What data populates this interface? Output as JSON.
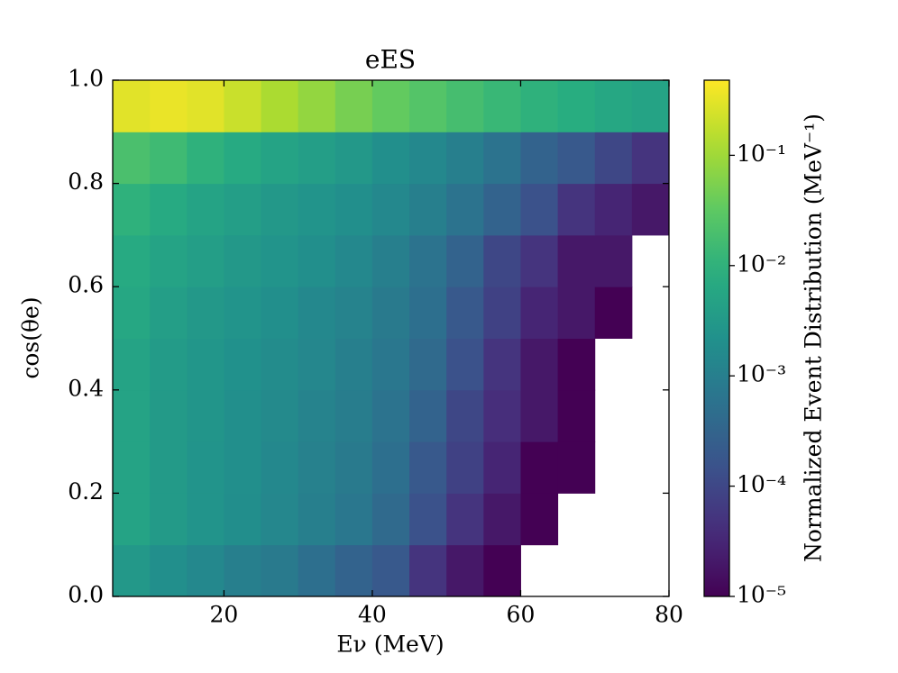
{
  "chart_data": {
    "type": "heatmap",
    "title": "eES",
    "xlabel": "Eν (MeV)",
    "ylabel": "cos(θe)",
    "colorbar_label": "Normalized Event Distribution (MeV⁻¹)",
    "colormap": "viridis",
    "color_scale": "log",
    "xlim": [
      5,
      80
    ],
    "ylim": [
      0,
      1
    ],
    "xticks": [
      20,
      40,
      60,
      80
    ],
    "yticks": [
      {
        "value": 0,
        "label": "0.0"
      },
      0.2,
      0.4,
      0.6,
      0.8,
      {
        "value": 1,
        "label": "1.0"
      }
    ],
    "clim": [
      1e-05,
      0.48
    ],
    "cticks": [
      {
        "value": 1e-05,
        "label": "10⁻⁵"
      },
      {
        "value": 0.0001,
        "label": "10⁻⁴"
      },
      {
        "value": 0.001,
        "label": "10⁻³"
      },
      {
        "value": 0.01,
        "label": "10⁻²"
      },
      {
        "value": 0.1,
        "label": "10⁻¹"
      }
    ],
    "xbins": [
      5,
      10,
      15,
      20,
      25,
      30,
      35,
      40,
      45,
      50,
      55,
      60,
      65,
      70,
      75,
      80
    ],
    "ybins": [
      0,
      0.1,
      0.2,
      0.3,
      0.4,
      0.5,
      0.6,
      0.7,
      0.8,
      0.9,
      1
    ],
    "z": [
      [
        0.003,
        0.002,
        0.0015,
        0.001,
        0.0008,
        0.0005,
        0.0003,
        0.0002,
        5e-05,
        2e-05,
        1e-05,
        null,
        null,
        null,
        null
      ],
      [
        0.005,
        0.0033,
        0.0025,
        0.0019,
        0.0014,
        0.001,
        0.0007,
        0.0004,
        0.00015,
        5e-05,
        2e-05,
        1e-05,
        null,
        null,
        null
      ],
      [
        0.005,
        0.0033,
        0.0025,
        0.002,
        0.0015,
        0.0011,
        0.0008,
        0.0005,
        0.0002,
        8e-05,
        3e-05,
        1e-05,
        1e-05,
        null,
        null
      ],
      [
        0.005,
        0.0033,
        0.0026,
        0.002,
        0.0016,
        0.0012,
        0.0009,
        0.0006,
        0.0003,
        0.0001,
        4e-05,
        2e-05,
        1e-05,
        null,
        null
      ],
      [
        0.005,
        0.0035,
        0.0028,
        0.0022,
        0.0018,
        0.0014,
        0.001,
        0.0007,
        0.0004,
        0.00015,
        5e-05,
        2e-05,
        1e-05,
        null,
        null
      ],
      [
        0.006,
        0.004,
        0.003,
        0.0025,
        0.002,
        0.0015,
        0.0012,
        0.0008,
        0.0005,
        0.0002,
        8e-05,
        3e-05,
        2e-05,
        1e-05,
        null
      ],
      [
        0.007,
        0.005,
        0.004,
        0.003,
        0.0025,
        0.002,
        0.0015,
        0.001,
        0.0006,
        0.0003,
        0.0001,
        5e-05,
        2e-05,
        2e-05,
        null
      ],
      [
        0.01,
        0.007,
        0.005,
        0.004,
        0.003,
        0.0025,
        0.002,
        0.0015,
        0.001,
        0.0006,
        0.0003,
        0.00015,
        5e-05,
        3e-05,
        2e-05
      ],
      [
        0.02,
        0.015,
        0.01,
        0.007,
        0.005,
        0.004,
        0.003,
        0.002,
        0.0015,
        0.001,
        0.0006,
        0.0003,
        0.0002,
        0.0001,
        5e-05
      ],
      [
        0.3,
        0.35,
        0.3,
        0.2,
        0.12,
        0.08,
        0.05,
        0.035,
        0.025,
        0.018,
        0.013,
        0.01,
        0.008,
        0.006,
        0.005
      ]
    ]
  }
}
